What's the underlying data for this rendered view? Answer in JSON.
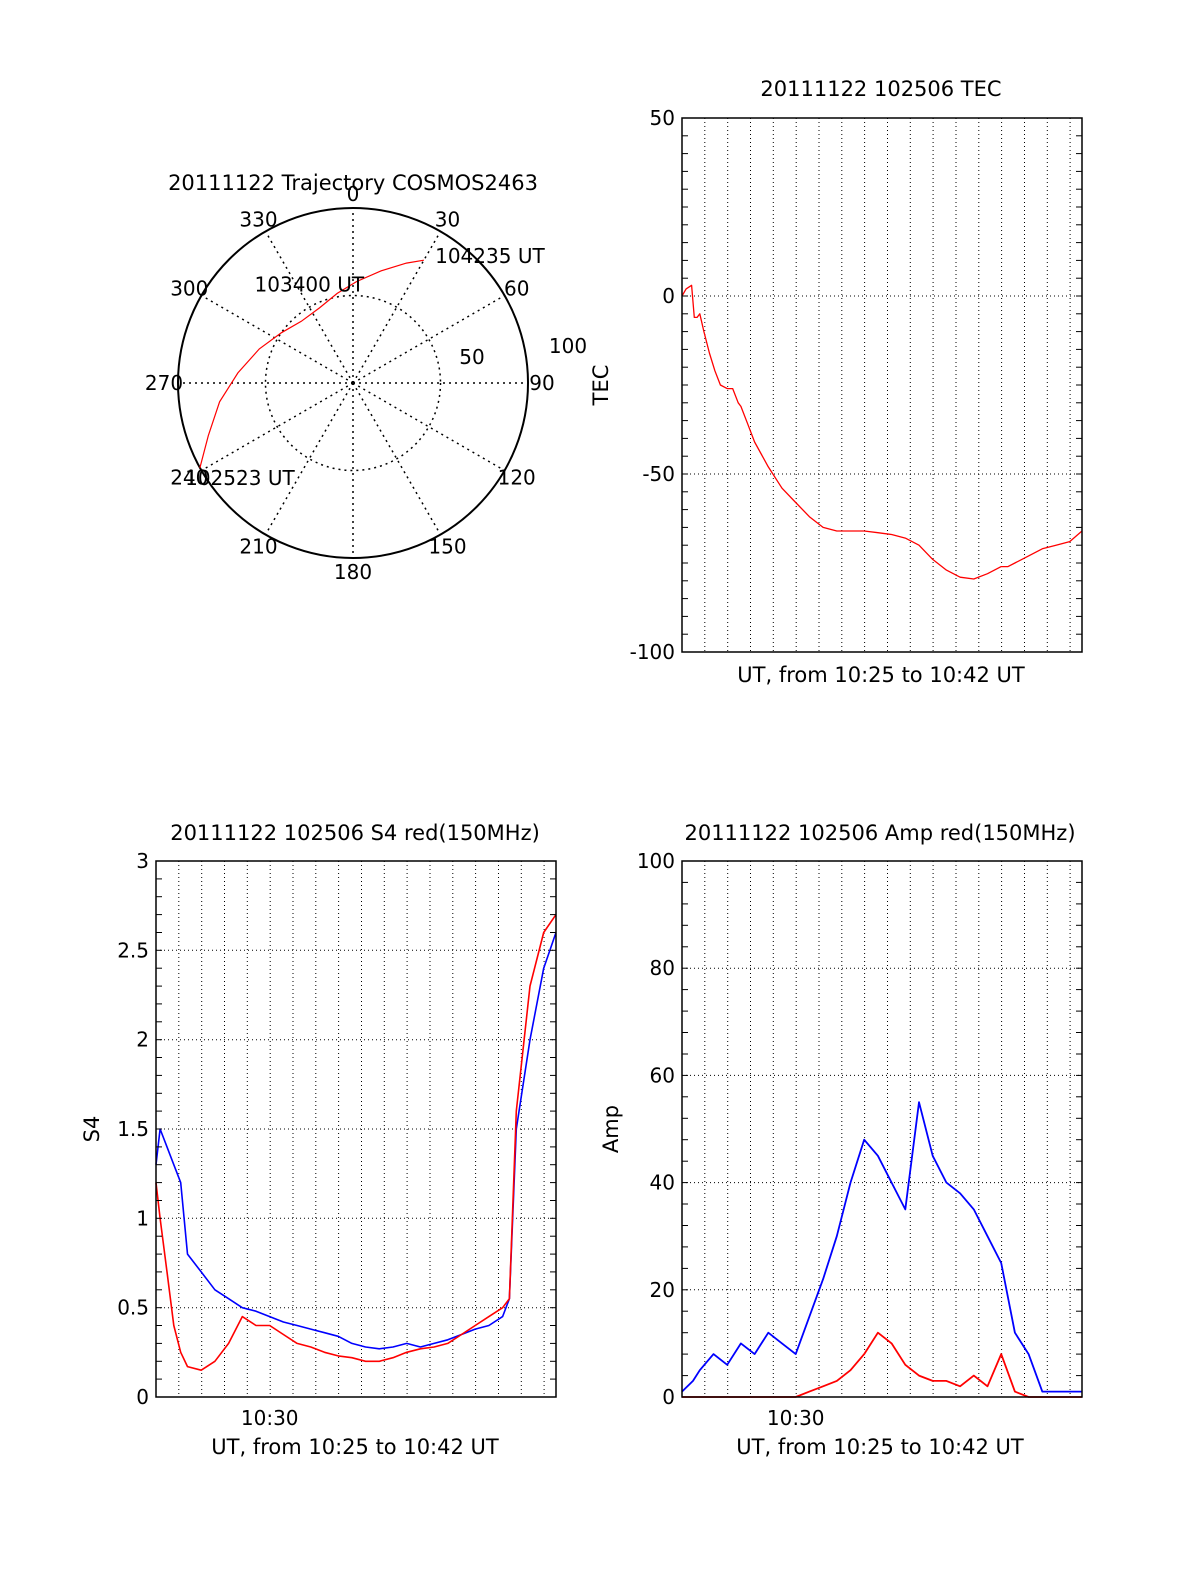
{
  "chart_data": [
    {
      "type": "polar",
      "title": "20111122 Trajectory COSMOS2463",
      "angle_labels": [
        "0",
        "30",
        "60",
        "90",
        "120",
        "150",
        "180",
        "210",
        "240",
        "270",
        "300",
        "330"
      ],
      "radial_labels": [
        "50",
        "100"
      ],
      "rlim": [
        0,
        100
      ],
      "grid": true,
      "trajectory_color": "#ff0000",
      "trajectory": {
        "azimuth_deg": [
          241,
          250,
          262,
          275,
          290,
          305,
          320,
          336,
          350,
          2,
          14,
          24,
          30
        ],
        "radius": [
          100,
          88,
          77,
          66,
          57,
          50,
          46,
          47,
          52,
          58,
          66,
          75,
          81
        ]
      },
      "annotations": [
        {
          "text": "102523 UT",
          "azimuth_deg": 241,
          "radius": 100
        },
        {
          "text": "103400 UT",
          "azimuth_deg": 320,
          "radius": 46
        },
        {
          "text": "104235 UT",
          "azimuth_deg": 30,
          "radius": 81
        }
      ]
    },
    {
      "type": "line",
      "title": "20111122 102506 TEC",
      "xlabel": "UT, from 10:25 to 10:42 UT",
      "ylabel": "TEC",
      "ylim": [
        -100,
        50
      ],
      "yticks": [
        "50",
        "0",
        "-50",
        "-100"
      ],
      "xlim": [
        10.417,
        10.709
      ],
      "grid": true,
      "series": [
        {
          "color": "#ff0000",
          "x": [
            10.417,
            10.42,
            10.424,
            10.426,
            10.428,
            10.43,
            10.433,
            10.437,
            10.441,
            10.445,
            10.45,
            10.454,
            10.458,
            10.46,
            10.465,
            10.47,
            10.48,
            10.49,
            10.5,
            10.51,
            10.52,
            10.53,
            10.54,
            10.55,
            10.56,
            10.57,
            10.58,
            10.59,
            10.6,
            10.61,
            10.62,
            10.63,
            10.64,
            10.65,
            10.655,
            10.66,
            10.67,
            10.68,
            10.69,
            10.7,
            10.709
          ],
          "y": [
            0,
            2,
            3,
            -6,
            -6,
            -5,
            -10,
            -16,
            -21,
            -25,
            -26,
            -26,
            -30,
            -31,
            -36,
            -41,
            -48,
            -54,
            -58,
            -62,
            -65,
            -66,
            -66,
            -66,
            -66.5,
            -67,
            -68,
            -70,
            -74,
            -77,
            -79,
            -79.5,
            -78,
            -76,
            -76,
            -75,
            -73,
            -71,
            -70,
            -69,
            -66
          ]
        }
      ]
    },
    {
      "type": "line",
      "title": "20111122 102506 S4 red(150MHz)",
      "xlabel": "UT, from 10:25 to 10:42 UT",
      "ylabel": "S4",
      "ylim": [
        0,
        3
      ],
      "yticks": [
        "0",
        "0.5",
        "1",
        "1.5",
        "2",
        "2.5",
        "3"
      ],
      "xlim": [
        10.417,
        10.709
      ],
      "xticks": [
        {
          "value": 10.5,
          "label": "10:30"
        }
      ],
      "grid": true,
      "series": [
        {
          "color": "#0000ff",
          "x": [
            10.417,
            10.42,
            10.425,
            10.43,
            10.435,
            10.44,
            10.45,
            10.46,
            10.47,
            10.48,
            10.49,
            10.5,
            10.51,
            10.52,
            10.53,
            10.54,
            10.55,
            10.56,
            10.57,
            10.58,
            10.59,
            10.6,
            10.61,
            10.62,
            10.63,
            10.64,
            10.65,
            10.66,
            10.67,
            10.675,
            10.68,
            10.69,
            10.7,
            10.709
          ],
          "y": [
            1.3,
            1.5,
            1.4,
            1.3,
            1.2,
            0.8,
            0.7,
            0.6,
            0.55,
            0.5,
            0.48,
            0.45,
            0.42,
            0.4,
            0.38,
            0.36,
            0.34,
            0.3,
            0.28,
            0.27,
            0.28,
            0.3,
            0.28,
            0.3,
            0.32,
            0.35,
            0.38,
            0.4,
            0.45,
            0.55,
            1.5,
            2.0,
            2.4,
            2.6
          ]
        },
        {
          "color": "#ff0000",
          "x": [
            10.417,
            10.42,
            10.425,
            10.43,
            10.435,
            10.44,
            10.45,
            10.46,
            10.47,
            10.48,
            10.49,
            10.5,
            10.51,
            10.52,
            10.53,
            10.54,
            10.55,
            10.56,
            10.57,
            10.58,
            10.59,
            10.6,
            10.61,
            10.62,
            10.63,
            10.64,
            10.65,
            10.66,
            10.67,
            10.675,
            10.68,
            10.69,
            10.7,
            10.709
          ],
          "y": [
            1.2,
            1.0,
            0.7,
            0.4,
            0.25,
            0.17,
            0.15,
            0.2,
            0.3,
            0.45,
            0.4,
            0.4,
            0.35,
            0.3,
            0.28,
            0.25,
            0.23,
            0.22,
            0.2,
            0.2,
            0.22,
            0.25,
            0.27,
            0.28,
            0.3,
            0.35,
            0.4,
            0.45,
            0.5,
            0.55,
            1.6,
            2.3,
            2.6,
            2.7
          ]
        }
      ]
    },
    {
      "type": "line",
      "title": "20111122 102506 Amp red(150MHz)",
      "xlabel": "UT, from 10:25 to 10:42 UT",
      "ylabel": "Amp",
      "ylim": [
        0,
        100
      ],
      "yticks": [
        "0",
        "20",
        "40",
        "60",
        "80",
        "100"
      ],
      "xlim": [
        10.417,
        10.709
      ],
      "xticks": [
        {
          "value": 10.5,
          "label": "10:30"
        }
      ],
      "grid": true,
      "series": [
        {
          "color": "#0000ff",
          "x": [
            10.417,
            10.425,
            10.43,
            10.44,
            10.45,
            10.46,
            10.47,
            10.48,
            10.49,
            10.5,
            10.51,
            10.52,
            10.53,
            10.54,
            10.55,
            10.56,
            10.57,
            10.58,
            10.59,
            10.6,
            10.61,
            10.62,
            10.63,
            10.64,
            10.65,
            10.66,
            10.67,
            10.68,
            10.69,
            10.7,
            10.709
          ],
          "y": [
            1,
            3,
            5,
            8,
            6,
            10,
            8,
            12,
            10,
            8,
            15,
            22,
            30,
            40,
            48,
            45,
            40,
            35,
            55,
            45,
            40,
            38,
            35,
            30,
            25,
            12,
            8,
            1,
            1,
            1,
            1
          ]
        },
        {
          "color": "#ff0000",
          "x": [
            10.417,
            10.5,
            10.51,
            10.52,
            10.53,
            10.54,
            10.55,
            10.56,
            10.57,
            10.58,
            10.59,
            10.6,
            10.61,
            10.62,
            10.63,
            10.64,
            10.65,
            10.66,
            10.67,
            10.709
          ],
          "y": [
            0,
            0,
            1,
            2,
            3,
            5,
            8,
            12,
            10,
            6,
            4,
            3,
            3,
            2,
            4,
            2,
            8,
            1,
            0,
            0
          ]
        }
      ]
    }
  ]
}
